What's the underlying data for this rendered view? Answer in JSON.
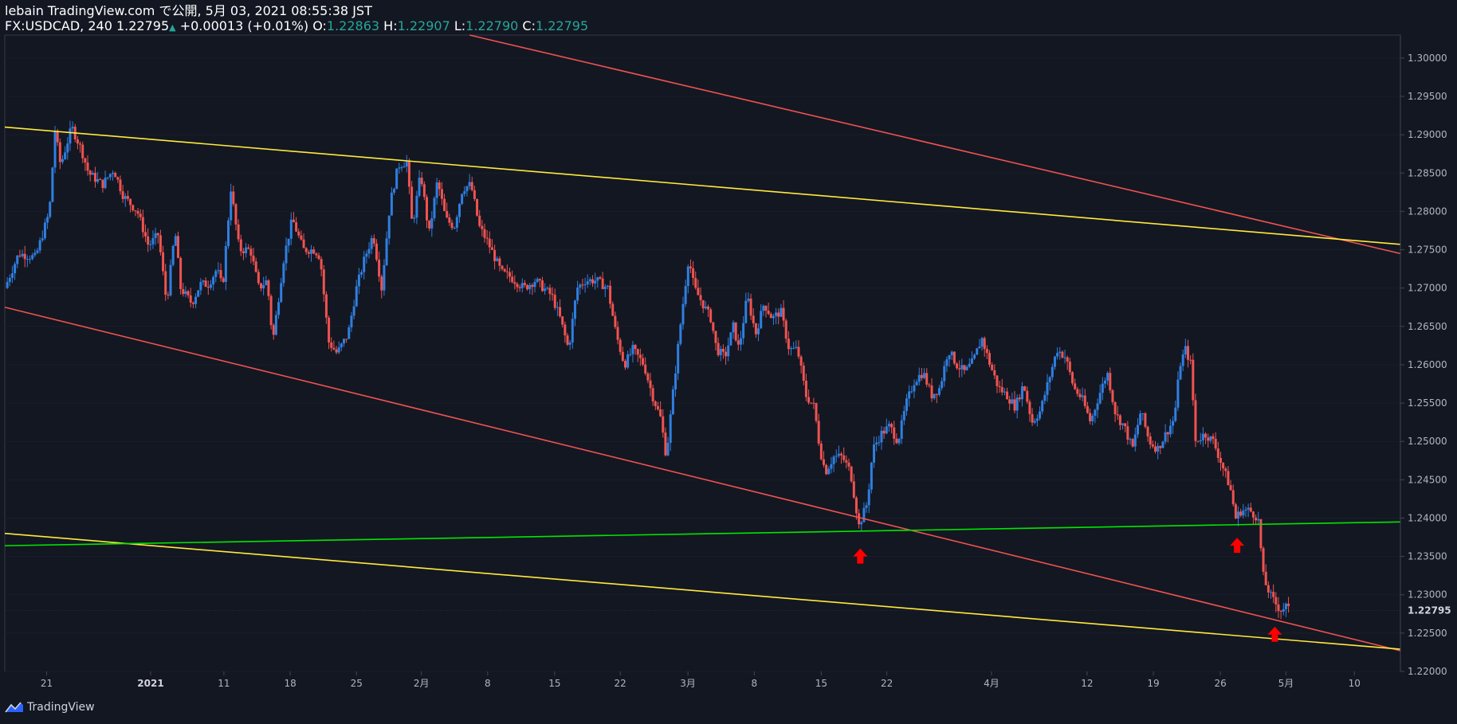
{
  "header": {
    "publisher": "lebain TradingView.com で公開, 5月 03, 2021 08:55:38 JST",
    "symbol": "FX:USDCAD, 240",
    "last": "1.22795",
    "change": "+0.00013 (+0.01%)",
    "o_label": "O:",
    "o_value": "1.22863",
    "h_label": "H:",
    "h_value": "1.22907",
    "l_label": "L:",
    "l_value": "1.22790",
    "c_label": "C:",
    "c_value": "1.22795"
  },
  "footer": {
    "brand": "TradingView",
    "logo_icon": "tradingview-logo-icon"
  },
  "chart_data": {
    "type": "candlestick",
    "symbol": "FX:USDCAD",
    "interval": "240",
    "ylim": [
      1.22,
      1.303
    ],
    "y_ticks": [
      "1.30000",
      "1.29500",
      "1.29000",
      "1.28500",
      "1.28000",
      "1.27500",
      "1.27000",
      "1.26500",
      "1.26000",
      "1.25500",
      "1.25000",
      "1.24500",
      "1.24000",
      "1.23500",
      "1.23000",
      "1.22500",
      "1.22000"
    ],
    "current_price_label": "1.22795",
    "current_price": 1.22795,
    "x_ticks": [
      {
        "label": "21",
        "pos": 0.03
      },
      {
        "label": "2021",
        "pos": 0.1045,
        "bold": true
      },
      {
        "label": "11",
        "pos": 0.157
      },
      {
        "label": "18",
        "pos": 0.2045
      },
      {
        "label": "25",
        "pos": 0.252
      },
      {
        "label": "2月",
        "pos": 0.2985
      },
      {
        "label": "8",
        "pos": 0.346
      },
      {
        "label": "15",
        "pos": 0.394
      },
      {
        "label": "22",
        "pos": 0.441
      },
      {
        "label": "3月",
        "pos": 0.4895
      },
      {
        "label": "8",
        "pos": 0.537
      },
      {
        "label": "15",
        "pos": 0.585
      },
      {
        "label": "22",
        "pos": 0.632
      },
      {
        "label": "4月",
        "pos": 0.707
      },
      {
        "label": "12",
        "pos": 0.7755
      },
      {
        "label": "19",
        "pos": 0.823
      },
      {
        "label": "26",
        "pos": 0.871
      },
      {
        "label": "5月",
        "pos": 0.918
      },
      {
        "label": "10",
        "pos": 0.967
      }
    ],
    "price_path": [
      [
        0.0,
        1.27
      ],
      [
        0.01,
        1.2745
      ],
      [
        0.022,
        1.274
      ],
      [
        0.032,
        1.28
      ],
      [
        0.036,
        1.2905
      ],
      [
        0.04,
        1.286
      ],
      [
        0.048,
        1.291
      ],
      [
        0.055,
        1.288
      ],
      [
        0.06,
        1.285
      ],
      [
        0.07,
        1.2835
      ],
      [
        0.078,
        1.2855
      ],
      [
        0.085,
        1.282
      ],
      [
        0.095,
        1.28
      ],
      [
        0.103,
        1.2755
      ],
      [
        0.11,
        1.277
      ],
      [
        0.116,
        1.268
      ],
      [
        0.122,
        1.2775
      ],
      [
        0.126,
        1.27
      ],
      [
        0.134,
        1.268
      ],
      [
        0.14,
        1.2705
      ],
      [
        0.146,
        1.2705
      ],
      [
        0.152,
        1.2725
      ],
      [
        0.156,
        1.27
      ],
      [
        0.162,
        1.283
      ],
      [
        0.168,
        1.275
      ],
      [
        0.176,
        1.275
      ],
      [
        0.182,
        1.27
      ],
      [
        0.188,
        1.271
      ],
      [
        0.192,
        1.263
      ],
      [
        0.2,
        1.274
      ],
      [
        0.206,
        1.279
      ],
      [
        0.214,
        1.275
      ],
      [
        0.222,
        1.275
      ],
      [
        0.226,
        1.274
      ],
      [
        0.232,
        1.263
      ],
      [
        0.238,
        1.2615
      ],
      [
        0.246,
        1.264
      ],
      [
        0.252,
        1.27
      ],
      [
        0.258,
        1.274
      ],
      [
        0.264,
        1.277
      ],
      [
        0.27,
        1.27
      ],
      [
        0.276,
        1.281
      ],
      [
        0.282,
        1.286
      ],
      [
        0.288,
        1.2865
      ],
      [
        0.292,
        1.278
      ],
      [
        0.298,
        1.285
      ],
      [
        0.304,
        1.277
      ],
      [
        0.31,
        1.284
      ],
      [
        0.316,
        1.279
      ],
      [
        0.322,
        1.278
      ],
      [
        0.328,
        1.283
      ],
      [
        0.334,
        1.2835
      ],
      [
        0.34,
        1.278
      ],
      [
        0.346,
        1.276
      ],
      [
        0.356,
        1.272
      ],
      [
        0.362,
        1.2715
      ],
      [
        0.372,
        1.27
      ],
      [
        0.38,
        1.271
      ],
      [
        0.386,
        1.27
      ],
      [
        0.392,
        1.269
      ],
      [
        0.398,
        1.266
      ],
      [
        0.404,
        1.262
      ],
      [
        0.41,
        1.27
      ],
      [
        0.416,
        1.271
      ],
      [
        0.424,
        1.271
      ],
      [
        0.432,
        1.27
      ],
      [
        0.438,
        1.264
      ],
      [
        0.444,
        1.26
      ],
      [
        0.45,
        1.262
      ],
      [
        0.458,
        1.26
      ],
      [
        0.464,
        1.256
      ],
      [
        0.47,
        1.253
      ],
      [
        0.474,
        1.248
      ],
      [
        0.478,
        1.255
      ],
      [
        0.484,
        1.265
      ],
      [
        0.49,
        1.274
      ],
      [
        0.494,
        1.27
      ],
      [
        0.5,
        1.268
      ],
      [
        0.506,
        1.266
      ],
      [
        0.51,
        1.262
      ],
      [
        0.516,
        1.261
      ],
      [
        0.522,
        1.265
      ],
      [
        0.526,
        1.262
      ],
      [
        0.532,
        1.269
      ],
      [
        0.538,
        1.264
      ],
      [
        0.544,
        1.268
      ],
      [
        0.55,
        1.266
      ],
      [
        0.556,
        1.267
      ],
      [
        0.562,
        1.262
      ],
      [
        0.568,
        1.262
      ],
      [
        0.574,
        1.256
      ],
      [
        0.58,
        1.2545
      ],
      [
        0.584,
        1.249
      ],
      [
        0.588,
        1.246
      ],
      [
        0.594,
        1.248
      ],
      [
        0.6,
        1.248
      ],
      [
        0.606,
        1.246
      ],
      [
        0.612,
        1.239
      ],
      [
        0.618,
        1.242
      ],
      [
        0.622,
        1.249
      ],
      [
        0.628,
        1.251
      ],
      [
        0.634,
        1.252
      ],
      [
        0.64,
        1.25
      ],
      [
        0.646,
        1.255
      ],
      [
        0.652,
        1.258
      ],
      [
        0.658,
        1.259
      ],
      [
        0.664,
        1.256
      ],
      [
        0.67,
        1.257
      ],
      [
        0.676,
        1.262
      ],
      [
        0.682,
        1.26
      ],
      [
        0.688,
        1.259
      ],
      [
        0.694,
        1.2605
      ],
      [
        0.7,
        1.2635
      ],
      [
        0.706,
        1.26
      ],
      [
        0.712,
        1.257
      ],
      [
        0.718,
        1.256
      ],
      [
        0.724,
        1.2545
      ],
      [
        0.73,
        1.2575
      ],
      [
        0.736,
        1.2525
      ],
      [
        0.742,
        1.254
      ],
      [
        0.748,
        1.258
      ],
      [
        0.754,
        1.262
      ],
      [
        0.76,
        1.261
      ],
      [
        0.766,
        1.257
      ],
      [
        0.772,
        1.2555
      ],
      [
        0.778,
        1.2525
      ],
      [
        0.784,
        1.256
      ],
      [
        0.79,
        1.259
      ],
      [
        0.796,
        1.2535
      ],
      [
        0.802,
        1.252
      ],
      [
        0.808,
        1.249
      ],
      [
        0.814,
        1.254
      ],
      [
        0.82,
        1.25
      ],
      [
        0.826,
        1.249
      ],
      [
        0.832,
        1.251
      ],
      [
        0.838,
        1.253
      ],
      [
        0.842,
        1.26
      ],
      [
        0.846,
        1.262
      ],
      [
        0.85,
        1.26
      ],
      [
        0.853,
        1.25
      ],
      [
        0.86,
        1.251
      ],
      [
        0.866,
        1.25
      ],
      [
        0.872,
        1.247
      ],
      [
        0.878,
        1.244
      ],
      [
        0.882,
        1.24
      ],
      [
        0.886,
        1.241
      ],
      [
        0.892,
        1.241
      ],
      [
        0.898,
        1.24
      ],
      [
        0.902,
        1.232
      ],
      [
        0.908,
        1.2295
      ],
      [
        0.914,
        1.228
      ],
      [
        0.918,
        1.2285
      ],
      [
        0.92,
        1.22795
      ]
    ],
    "candle_colors": {
      "up": "#2f7fe0",
      "down": "#ef5350"
    },
    "lines": [
      {
        "name": "upper-red-trendline",
        "color": "#ef5350",
        "p1": [
          0.333,
          1.303
        ],
        "p2": [
          1.0,
          1.2745
        ]
      },
      {
        "name": "lower-red-trendline",
        "color": "#ef5350",
        "p1": [
          0.0,
          1.2675
        ],
        "p2": [
          1.0,
          1.2227
        ]
      },
      {
        "name": "upper-yellow-trendline",
        "color": "#ffeb3b",
        "p1": [
          0.0,
          1.291
        ],
        "p2": [
          1.0,
          1.2757
        ]
      },
      {
        "name": "lower-yellow-trendline",
        "color": "#ffeb3b",
        "p1": [
          0.0,
          1.238
        ],
        "p2": [
          1.0,
          1.2229
        ]
      },
      {
        "name": "green-support-line",
        "color": "#00e600",
        "p1": [
          0.0,
          1.2364
        ],
        "p2": [
          1.0,
          1.2395
        ]
      }
    ],
    "markers": [
      {
        "name": "red-up-arrow-1",
        "pos": 0.613,
        "price": 1.235,
        "color": "#ff0000"
      },
      {
        "name": "red-up-arrow-2",
        "pos": 0.883,
        "price": 1.2364,
        "color": "#ff0000"
      },
      {
        "name": "red-up-arrow-3",
        "pos": 0.91,
        "price": 1.2248,
        "color": "#ff0000"
      }
    ]
  }
}
